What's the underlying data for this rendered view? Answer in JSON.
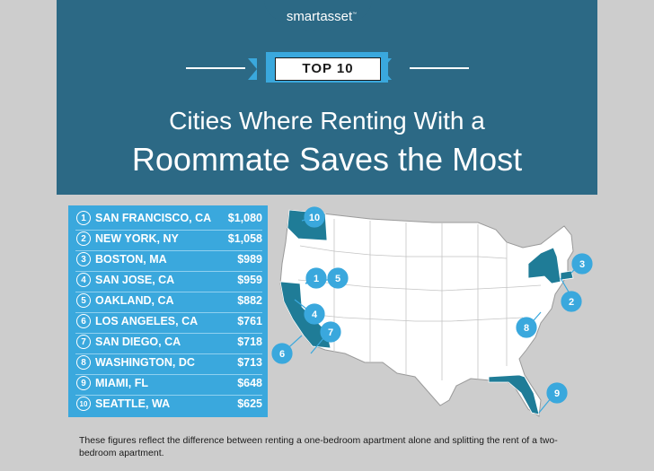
{
  "brand": {
    "name": "smartasset"
  },
  "badge": {
    "label": "TOP 10"
  },
  "title": {
    "line1": "Cities Where Renting With a",
    "line2": "Roommate Saves the Most"
  },
  "ranking": [
    {
      "rank": "1",
      "city": "SAN FRANCISCO, CA",
      "value": "$1,080"
    },
    {
      "rank": "2",
      "city": "NEW YORK, NY",
      "value": "$1,058"
    },
    {
      "rank": "3",
      "city": "BOSTON, MA",
      "value": "$989"
    },
    {
      "rank": "4",
      "city": "SAN JOSE, CA",
      "value": "$959"
    },
    {
      "rank": "5",
      "city": "OAKLAND, CA",
      "value": "$882"
    },
    {
      "rank": "6",
      "city": "LOS ANGELES, CA",
      "value": "$761"
    },
    {
      "rank": "7",
      "city": "SAN DIEGO, CA",
      "value": "$718"
    },
    {
      "rank": "8",
      "city": "WASHINGTON, DC",
      "value": "$713"
    },
    {
      "rank": "9",
      "city": "MIAMI, FL",
      "value": "$648"
    },
    {
      "rank": "10",
      "city": "SEATTLE, WA",
      "value": "$625"
    }
  ],
  "map": {
    "markers": [
      "1",
      "2",
      "3",
      "4",
      "5",
      "6",
      "7",
      "8",
      "9",
      "10"
    ],
    "highlight_color": "#1f7c97",
    "state_fill": "#ffffff",
    "marker_color": "#3aa8dd"
  },
  "footnote": "These figures reflect the difference between renting a one-bedroom apartment alone and splitting the rent of a two-bedroom apartment."
}
